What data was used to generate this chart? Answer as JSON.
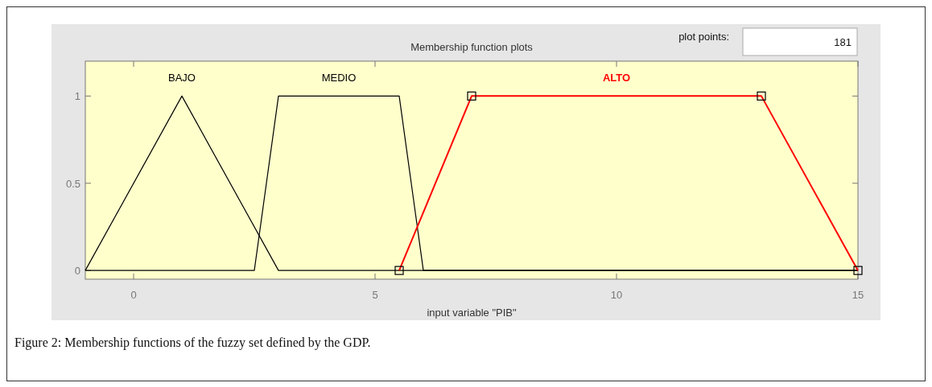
{
  "chart_data": {
    "type": "line",
    "title": "Membership function plots",
    "xlabel": "input variable \"PIB\"",
    "xlim": [
      -1,
      15
    ],
    "xticks": [
      0,
      5,
      10,
      15
    ],
    "ylim": [
      -0.05,
      1.2
    ],
    "yticks": [
      0,
      0.5,
      1
    ],
    "grid": false,
    "line_style": "solid",
    "series": [
      {
        "name": "BAJO",
        "color": "#000000",
        "x": [
          -1,
          1,
          3,
          15
        ],
        "values": [
          0,
          1,
          0,
          0
        ],
        "marker": "none"
      },
      {
        "name": "MEDIO",
        "color": "#000000",
        "x": [
          -1,
          2.5,
          3,
          5.5,
          6,
          15
        ],
        "values": [
          0,
          0,
          1,
          1,
          0,
          0
        ],
        "marker": "none"
      },
      {
        "name": "ALTO",
        "color": "#ff0000",
        "x": [
          5.5,
          7,
          13,
          15
        ],
        "values": [
          0,
          1,
          1,
          0
        ],
        "marker": "square"
      }
    ],
    "annotations": [
      "plot points:",
      "181",
      "Figure 2: Membership functions of the fuzzy set defined by the GDP."
    ]
  }
}
